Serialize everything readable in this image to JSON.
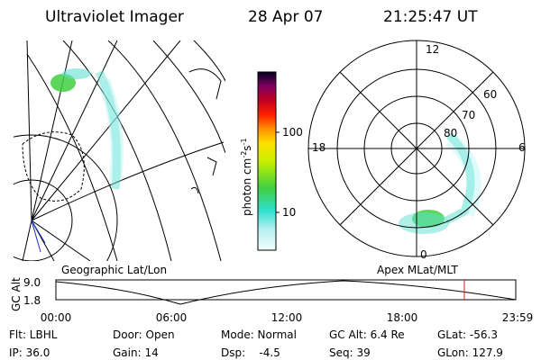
{
  "header": {
    "instrument": "Ultraviolet Imager",
    "date": "28 Apr 07",
    "time": "21:25:47 UT"
  },
  "colorbar": {
    "label": {
      "main": "photon cm",
      "exp1": "-2",
      "unit2": "s",
      "exp2": "-1"
    },
    "ticks": [
      "100",
      "10"
    ]
  },
  "polar": {
    "mlt_labels": {
      "top": "12",
      "bottom": "0",
      "left": "18",
      "right": "6"
    },
    "lat_labels": [
      "60",
      "70",
      "80"
    ]
  },
  "orbit": {
    "left_title": "Geographic Lat/Lon",
    "right_title": "Apex MLat/MLT",
    "y_label": "GC Alt",
    "y_ticks": [
      "9.0",
      "1.8"
    ],
    "x_ticks": [
      "00:00",
      "06:00",
      "12:00",
      "18:00",
      "23:59"
    ]
  },
  "info": {
    "row1": [
      "Flt: LBHL",
      "Door: Open",
      "Mode: Normal",
      "GC Alt: 6.4 Re",
      "GLat: -56.3"
    ],
    "row2": [
      "IP: 36.0",
      "Gain: 14",
      "Dsp:    -4.5",
      "Seq: 39",
      "GLon: 127.9"
    ]
  }
}
